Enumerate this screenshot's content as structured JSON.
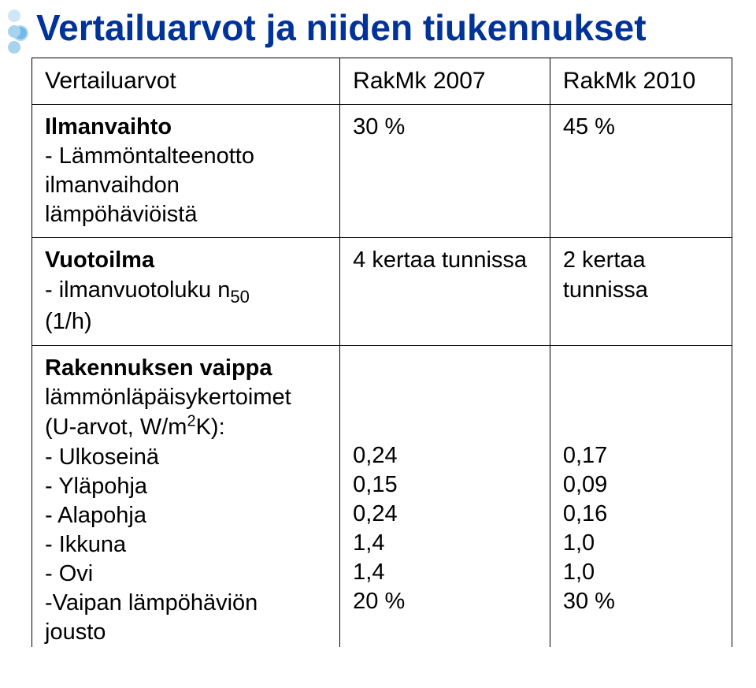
{
  "title": "Vertailuarvot ja niiden tiukennukset",
  "title_color": "#003399",
  "bullet_colors": [
    "#d0e6f6",
    "#a8d3ef",
    "#a8d3ef"
  ],
  "title_bullet_color": "#75b8e8",
  "table": {
    "header": {
      "col1": "Vertailuarvot",
      "col2": "RakMk 2007",
      "col3": "RakMk 2010"
    },
    "row_ilmanvaihto": {
      "label": "Ilmanvaihto",
      "desc1": "- Lämmöntalteenotto",
      "desc2": "ilmanvaihdon",
      "desc3": "lämpöhäviöistä",
      "v2007": "30 %",
      "v2010": "45 %"
    },
    "row_vuotoilma": {
      "label": "Vuotoilma",
      "desc1a": "- ilmanvuotoluku n",
      "desc1b": "50",
      "desc2": "(1/h)",
      "v2007": "4 kertaa tunnissa",
      "v2010": "2 kertaa tunnissa"
    },
    "row_vaippa": {
      "label": "Rakennuksen vaippa",
      "sub_a": "lämmönläpäisykertoimet",
      "sub_b1": "(U-arvot, W/m",
      "sub_b2": "2",
      "sub_b3": "K):",
      "items": [
        "- Ulkoseinä",
        "- Yläpohja",
        "- Alapohja",
        "- Ikkuna",
        "- Ovi",
        "-Vaipan lämpöhäviön",
        "jousto"
      ],
      "v2007": [
        "0,24",
        "0,15",
        "0,24",
        "1,4",
        "1,4",
        "20 %"
      ],
      "v2010": [
        "0,17",
        "0,09",
        "0,16",
        "1,0",
        "1,0",
        "30 %"
      ]
    }
  }
}
